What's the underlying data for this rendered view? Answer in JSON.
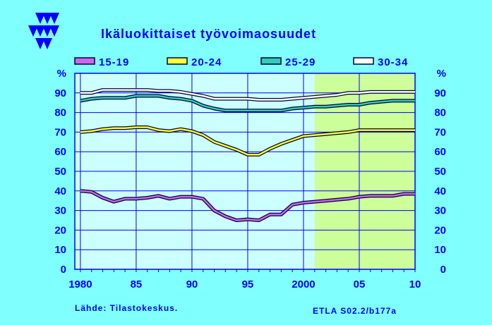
{
  "title": "Ikäluokittaiset  työvoimaosuudet",
  "source": "Lähde:   Tilastokeskus.",
  "code": "ETLA S02.2/b177a",
  "colors": {
    "background": "#80ffff",
    "plot_background": "#ccffff",
    "forecast_background": "#ccff99",
    "axis": "#0000ff",
    "grid": "#0000ff",
    "text": "#0000ff",
    "logo": "#0000ff"
  },
  "chart_data": {
    "type": "line",
    "xlim": [
      1979.5,
      2010
    ],
    "ylim": [
      0,
      100
    ],
    "forecast_from": 2001,
    "y_unit_label": "%",
    "y_ticks": [
      0,
      10,
      20,
      30,
      40,
      50,
      60,
      70,
      80,
      90
    ],
    "x_ticks": [
      {
        "value": 1980,
        "label": "1980"
      },
      {
        "value": 1985,
        "label": "85"
      },
      {
        "value": 1990,
        "label": "90"
      },
      {
        "value": 1995,
        "label": "95"
      },
      {
        "value": 2000,
        "label": "2000"
      },
      {
        "value": 2005,
        "label": "05"
      },
      {
        "value": 2010,
        "label": "10"
      }
    ],
    "legend": "top",
    "grid": true,
    "x": [
      1980,
      1981,
      1982,
      1983,
      1984,
      1985,
      1986,
      1987,
      1988,
      1989,
      1990,
      1991,
      1992,
      1993,
      1994,
      1995,
      1996,
      1997,
      1998,
      1999,
      2000,
      2001,
      2002,
      2003,
      2004,
      2005,
      2006,
      2007,
      2008,
      2009,
      2010
    ],
    "series": [
      {
        "name": "15-19",
        "color": "#cc66ee",
        "values": [
          40,
          39.5,
          36.5,
          34.5,
          36,
          36,
          36.5,
          37.5,
          36,
          37,
          37,
          36,
          30,
          27,
          25,
          25.5,
          25,
          28,
          28,
          33,
          34,
          34.5,
          35,
          35.5,
          36,
          37,
          37.5,
          37.5,
          37.5,
          38.5,
          38.5
        ]
      },
      {
        "name": "20-24",
        "color": "#ffff33",
        "values": [
          70,
          70.5,
          71.5,
          72,
          72,
          72.5,
          72.5,
          71,
          70.5,
          71.5,
          70.5,
          68.5,
          65,
          63,
          61,
          58.5,
          58.5,
          61.5,
          64,
          66,
          68,
          68.5,
          69,
          69.5,
          70,
          71,
          71,
          71,
          71,
          71,
          71
        ]
      },
      {
        "name": "25-29",
        "color": "#33ccbb",
        "values": [
          86,
          87,
          87.5,
          87.5,
          87.5,
          88.5,
          88.5,
          88.5,
          87.5,
          87,
          86,
          83.5,
          82,
          81,
          81,
          81,
          81,
          81,
          81,
          82,
          82.5,
          83,
          83,
          83.5,
          84,
          84,
          85,
          85.5,
          86,
          86,
          86
        ]
      },
      {
        "name": "30-34",
        "color": "#ffffff",
        "values": [
          90,
          90,
          91.5,
          91.5,
          91.5,
          91.5,
          91.5,
          91,
          91,
          90.5,
          89.5,
          88.5,
          87,
          87,
          87,
          87,
          86.5,
          86.5,
          86.5,
          87,
          87.5,
          88,
          88.5,
          89,
          90,
          90,
          90.5,
          90.5,
          90.5,
          90.5,
          90.5
        ]
      }
    ]
  }
}
